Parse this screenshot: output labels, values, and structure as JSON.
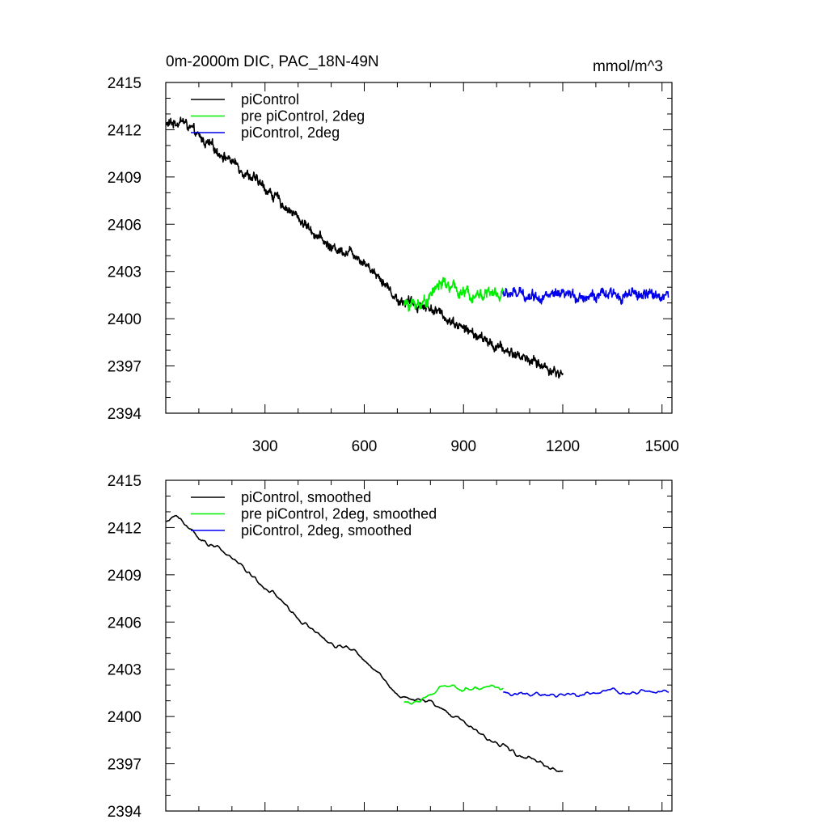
{
  "chart_data": [
    {
      "type": "line",
      "title": "0m-2000m DIC, PAC_18N-49N",
      "units": "mmol/m^3",
      "xlabel": "",
      "ylabel": "",
      "xlim": [
        0,
        1530
      ],
      "ylim": [
        2394,
        2415
      ],
      "xticks": [
        300,
        600,
        900,
        1200,
        1500
      ],
      "xtick_labels": [
        "300",
        "600",
        "900",
        "1200",
        "1500"
      ],
      "yticks": [
        2394,
        2397,
        2400,
        2403,
        2406,
        2409,
        2412,
        2415
      ],
      "ytick_labels": [
        "2394",
        "2397",
        "2400",
        "2403",
        "2406",
        "2409",
        "2412",
        "2415"
      ],
      "legend_position": "top-left",
      "series": [
        {
          "name": "piControl",
          "color": "#000000",
          "x_start": 1,
          "x_end": 1200,
          "n": 1200,
          "trend": [
            [
              1,
              2412.3
            ],
            [
              50,
              2412.6
            ],
            [
              100,
              2411.5
            ],
            [
              200,
              2410.0
            ],
            [
              300,
              2408.3
            ],
            [
              400,
              2406.4
            ],
            [
              500,
              2404.5
            ],
            [
              570,
              2404.2
            ],
            [
              650,
              2402.6
            ],
            [
              700,
              2401.2
            ],
            [
              800,
              2400.7
            ],
            [
              900,
              2399.4
            ],
            [
              1000,
              2398.2
            ],
            [
              1100,
              2397.4
            ],
            [
              1200,
              2396.4
            ]
          ],
          "noise": 0.5,
          "smoothed": false
        },
        {
          "name": "pre piControl, 2deg",
          "color": "#00ee00",
          "x_start": 720,
          "x_end": 1020,
          "n": 300,
          "trend": [
            [
              720,
              2400.9
            ],
            [
              780,
              2401.0
            ],
            [
              830,
              2402.3
            ],
            [
              900,
              2401.6
            ],
            [
              1020,
              2401.6
            ]
          ],
          "noise": 0.6,
          "smoothed": false
        },
        {
          "name": "piControl, 2deg",
          "color": "#0000ee",
          "x_start": 1020,
          "x_end": 1520,
          "n": 500,
          "trend": [
            [
              1020,
              2401.6
            ],
            [
              1200,
              2401.4
            ],
            [
              1350,
              2401.5
            ],
            [
              1520,
              2401.5
            ]
          ],
          "noise": 0.55,
          "smoothed": false
        }
      ]
    },
    {
      "type": "line",
      "title": "",
      "units": "",
      "xlabel": "",
      "ylabel": "",
      "xlim": [
        0,
        1530
      ],
      "ylim": [
        2394,
        2415
      ],
      "xticks": [
        300,
        600,
        900,
        1200,
        1500
      ],
      "yticks": [
        2394,
        2397,
        2400,
        2403,
        2406,
        2409,
        2412,
        2415
      ],
      "ytick_labels": [
        "2394",
        "2397",
        "2400",
        "2403",
        "2406",
        "2409",
        "2412",
        "2415"
      ],
      "legend_position": "top-left",
      "series": [
        {
          "name": "piControl, smoothed",
          "color": "#000000",
          "x_start": 1,
          "x_end": 1200,
          "n": 1200,
          "trend": [
            [
              1,
              2412.3
            ],
            [
              30,
              2412.8
            ],
            [
              50,
              2412.4
            ],
            [
              100,
              2411.4
            ],
            [
              200,
              2410.0
            ],
            [
              300,
              2408.3
            ],
            [
              400,
              2406.3
            ],
            [
              500,
              2404.5
            ],
            [
              570,
              2404.3
            ],
            [
              650,
              2402.6
            ],
            [
              700,
              2401.2
            ],
            [
              800,
              2400.9
            ],
            [
              900,
              2399.6
            ],
            [
              1000,
              2398.3
            ],
            [
              1100,
              2397.3
            ],
            [
              1200,
              2396.5
            ]
          ],
          "noise": 0.35,
          "smoothed": true
        },
        {
          "name": "pre piControl, 2deg, smoothed",
          "color": "#00ee00",
          "x_start": 720,
          "x_end": 1020,
          "n": 300,
          "trend": [
            [
              720,
              2400.9
            ],
            [
              780,
              2401.1
            ],
            [
              830,
              2402.0
            ],
            [
              900,
              2401.7
            ],
            [
              1020,
              2401.8
            ]
          ],
          "noise": 0.4,
          "smoothed": true
        },
        {
          "name": "piControl, 2deg, smoothed",
          "color": "#0000ee",
          "x_start": 1020,
          "x_end": 1520,
          "n": 500,
          "trend": [
            [
              1020,
              2401.5
            ],
            [
              1200,
              2401.3
            ],
            [
              1350,
              2401.6
            ],
            [
              1520,
              2401.6
            ]
          ],
          "noise": 0.35,
          "smoothed": true
        }
      ]
    }
  ]
}
